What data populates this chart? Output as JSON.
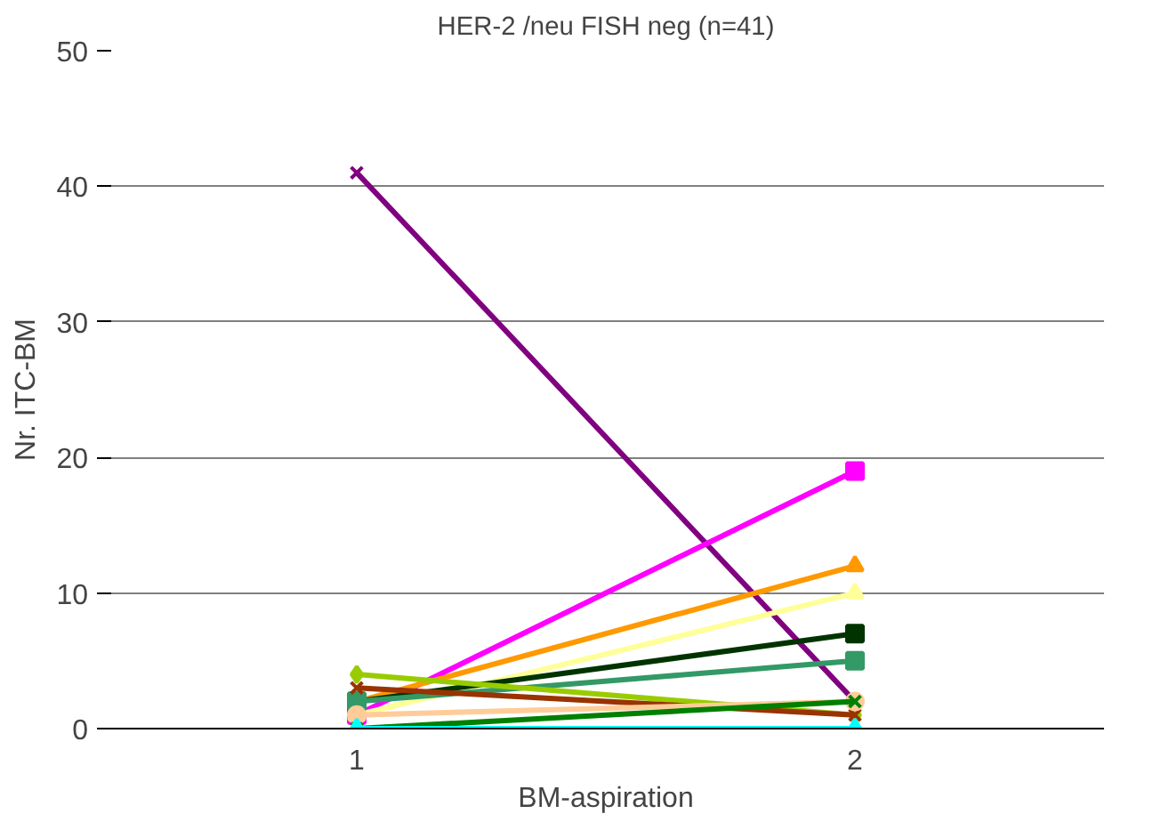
{
  "chart_data": {
    "type": "line",
    "title": "HER-2 /neu FISH neg (n=41)",
    "xlabel": "BM-aspiration",
    "ylabel": "Nr. ITC-BM",
    "categories": [
      "1",
      "2"
    ],
    "ylim": [
      0,
      50
    ],
    "yticks": [
      0,
      10,
      20,
      30,
      40,
      50
    ],
    "grid": "y",
    "series": [
      {
        "color": "#800080",
        "marker": "cross",
        "values": [
          41,
          2
        ]
      },
      {
        "color": "#ff00ff",
        "marker": "square",
        "values": [
          1,
          19
        ]
      },
      {
        "color": "#ff9900",
        "marker": "triangle",
        "values": [
          2,
          12
        ]
      },
      {
        "color": "#ffff99",
        "marker": "triangle",
        "values": [
          1,
          10
        ]
      },
      {
        "color": "#003300",
        "marker": "square",
        "values": [
          2,
          7
        ]
      },
      {
        "color": "#339966",
        "marker": "square",
        "values": [
          2,
          5
        ]
      },
      {
        "color": "#99cc00",
        "marker": "diamond",
        "values": [
          4,
          1
        ]
      },
      {
        "color": "#993300",
        "marker": "cross",
        "values": [
          3,
          1
        ]
      },
      {
        "color": "#ffcc99",
        "marker": "circle",
        "values": [
          1,
          2
        ]
      },
      {
        "color": "#008000",
        "marker": "cross",
        "values": [
          0,
          2
        ]
      },
      {
        "color": "#00ffff",
        "marker": "triangle",
        "values": [
          0,
          0
        ]
      }
    ]
  }
}
